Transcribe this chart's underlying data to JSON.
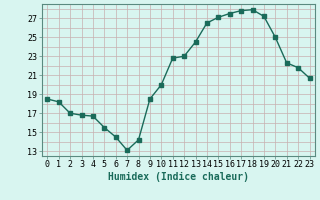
{
  "x": [
    0,
    1,
    2,
    3,
    4,
    5,
    6,
    7,
    8,
    9,
    10,
    11,
    12,
    13,
    14,
    15,
    16,
    17,
    18,
    19,
    20,
    21,
    22,
    23
  ],
  "y": [
    18.5,
    18.2,
    17.0,
    16.8,
    16.7,
    15.5,
    14.5,
    13.1,
    14.2,
    18.5,
    20.0,
    22.8,
    23.0,
    24.5,
    26.5,
    27.1,
    27.5,
    27.8,
    27.9,
    27.2,
    25.0,
    22.3,
    21.8,
    20.7
  ],
  "line_color": "#1a6b5a",
  "marker": "s",
  "markersize": 2.5,
  "linewidth": 1.0,
  "bg_color": "#d8f5f0",
  "grid_color_major": "#c8b0b0",
  "grid_color_minor": "#ddd0d0",
  "xlabel": "Humidex (Indice chaleur)",
  "xlabel_fontsize": 7,
  "ylabel_ticks": [
    13,
    15,
    17,
    19,
    21,
    23,
    25,
    27
  ],
  "xlim": [
    -0.5,
    23.5
  ],
  "ylim": [
    12.5,
    28.5
  ],
  "xticks": [
    0,
    1,
    2,
    3,
    4,
    5,
    6,
    7,
    8,
    9,
    10,
    11,
    12,
    13,
    14,
    15,
    16,
    17,
    18,
    19,
    20,
    21,
    22,
    23
  ],
  "tick_fontsize": 6.0
}
